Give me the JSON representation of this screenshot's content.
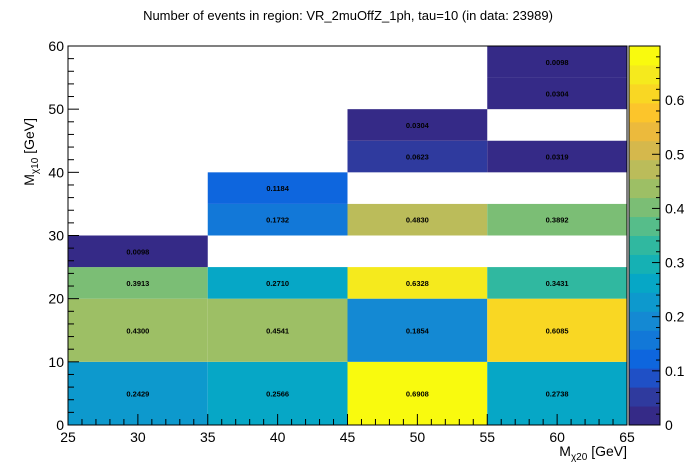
{
  "chart_data": {
    "type": "heatmap",
    "title": "Number of events in region: VR_2muOffZ_1ph, tau=10 (in data: 23989)",
    "xlabel": {
      "main": "M",
      "sub": "χ20",
      "unit": " [GeV]"
    },
    "ylabel": {
      "main": "M",
      "sub": "χ10",
      "unit": " [GeV]"
    },
    "xlim": [
      25,
      65
    ],
    "ylim": [
      0,
      60
    ],
    "xticks": [
      "25",
      "30",
      "35",
      "40",
      "45",
      "50",
      "55",
      "60",
      "65"
    ],
    "yticks": [
      "0",
      "10",
      "20",
      "30",
      "40",
      "50",
      "60"
    ],
    "zlim": [
      0,
      0.7
    ],
    "zticks": [
      "0",
      "0.1",
      "0.2",
      "0.3",
      "0.4",
      "0.5",
      "0.6"
    ],
    "cells": [
      {
        "x0": 25,
        "x1": 35,
        "y0": 0,
        "y1": 10,
        "value": 0.2429,
        "label": "0.2429"
      },
      {
        "x0": 35,
        "x1": 45,
        "y0": 0,
        "y1": 10,
        "value": 0.2566,
        "label": "0.2566"
      },
      {
        "x0": 45,
        "x1": 55,
        "y0": 0,
        "y1": 10,
        "value": 0.6908,
        "label": "0.6908"
      },
      {
        "x0": 55,
        "x1": 65,
        "y0": 0,
        "y1": 10,
        "value": 0.2738,
        "label": "0.2738"
      },
      {
        "x0": 25,
        "x1": 35,
        "y0": 10,
        "y1": 20,
        "value": 0.43,
        "label": "0.4300"
      },
      {
        "x0": 35,
        "x1": 45,
        "y0": 10,
        "y1": 20,
        "value": 0.4541,
        "label": "0.4541"
      },
      {
        "x0": 45,
        "x1": 55,
        "y0": 10,
        "y1": 20,
        "value": 0.1854,
        "label": "0.1854"
      },
      {
        "x0": 55,
        "x1": 65,
        "y0": 10,
        "y1": 20,
        "value": 0.6085,
        "label": "0.6085"
      },
      {
        "x0": 25,
        "x1": 35,
        "y0": 20,
        "y1": 25,
        "value": 0.3913,
        "label": "0.3913"
      },
      {
        "x0": 35,
        "x1": 45,
        "y0": 20,
        "y1": 25,
        "value": 0.271,
        "label": "0.2710"
      },
      {
        "x0": 45,
        "x1": 55,
        "y0": 20,
        "y1": 25,
        "value": 0.6328,
        "label": "0.6328"
      },
      {
        "x0": 55,
        "x1": 65,
        "y0": 20,
        "y1": 25,
        "value": 0.3431,
        "label": "0.3431"
      },
      {
        "x0": 25,
        "x1": 35,
        "y0": 25,
        "y1": 30,
        "value": 0.0098,
        "label": "0.0098"
      },
      {
        "x0": 35,
        "x1": 45,
        "y0": 30,
        "y1": 35,
        "value": 0.1732,
        "label": "0.1732"
      },
      {
        "x0": 45,
        "x1": 55,
        "y0": 30,
        "y1": 35,
        "value": 0.483,
        "label": "0.4830"
      },
      {
        "x0": 55,
        "x1": 65,
        "y0": 30,
        "y1": 35,
        "value": 0.3892,
        "label": "0.3892"
      },
      {
        "x0": 35,
        "x1": 45,
        "y0": 35,
        "y1": 40,
        "value": 0.1184,
        "label": "0.1184"
      },
      {
        "x0": 45,
        "x1": 55,
        "y0": 40,
        "y1": 45,
        "value": 0.0623,
        "label": "0.0623"
      },
      {
        "x0": 55,
        "x1": 65,
        "y0": 40,
        "y1": 45,
        "value": 0.0319,
        "label": "0.0319"
      },
      {
        "x0": 45,
        "x1": 55,
        "y0": 45,
        "y1": 50,
        "value": 0.0304,
        "label": "0.0304"
      },
      {
        "x0": 55,
        "x1": 65,
        "y0": 50,
        "y1": 55,
        "value": 0.0304,
        "label": "0.0304"
      },
      {
        "x0": 55,
        "x1": 65,
        "y0": 55,
        "y1": 60,
        "value": 0.0098,
        "label": "0.0098"
      }
    ],
    "palette": [
      "#352a87",
      "#2f3a9e",
      "#1f50c6",
      "#0e66de",
      "#1278d8",
      "#1489d3",
      "#0d99cd",
      "#06a7c6",
      "#15b1b4",
      "#30b8a0",
      "#56bd8a",
      "#7bbe75",
      "#9dbf65",
      "#bbbc5a",
      "#d5b84c",
      "#ecba3c",
      "#fcc52b",
      "#f9d723",
      "#f5ea1d",
      "#f9fa0e"
    ]
  }
}
